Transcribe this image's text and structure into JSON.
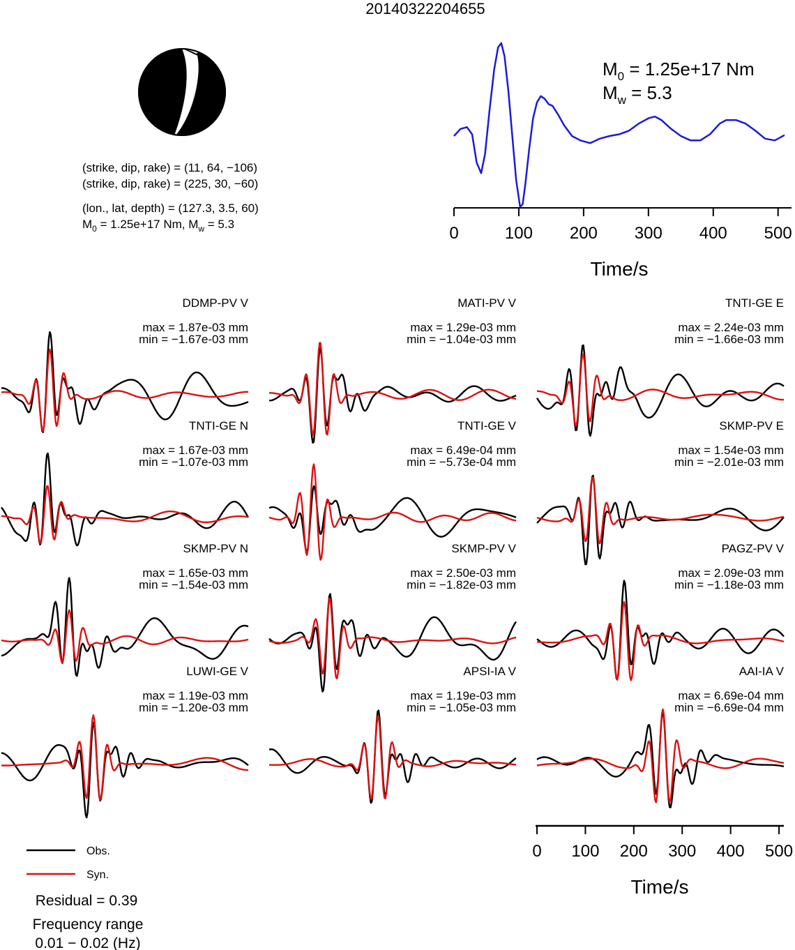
{
  "title": "20140322204655",
  "focal_mechanism": {
    "icon": "beachball-icon",
    "compression_color": "#000000",
    "dilatation_color": "#ffffff",
    "line1": "(strike, dip, rake) = (11, 64, −106)",
    "line2": "(strike, dip, rake) = (225, 30, −60)",
    "line3": "(lon., lat, depth) = (127.3, 3.5, 60)",
    "line4_m0": "M",
    "line4_m0_sub": "0",
    "line4_mid": " = 1.25e+17 Nm, M",
    "line4_mw_sub": "w",
    "line4_end": " = 5.3"
  },
  "stf": {
    "m0_label": "M",
    "m0_sub": "0",
    "m0_value": " = 1.25e+17 Nm",
    "mw_label": "M",
    "mw_sub": "w",
    "mw_value": " = 5.3",
    "color": "#1a1adb",
    "xlabel": "Time/s",
    "ticks": [
      "0",
      "100",
      "200",
      "300",
      "400",
      "500"
    ]
  },
  "chart_data": {
    "type": "line",
    "source_time_function": {
      "x_range": [
        0,
        510
      ],
      "x": [
        0,
        10,
        20,
        28,
        35,
        42,
        48,
        55,
        62,
        68,
        73,
        78,
        84,
        90,
        96,
        102,
        106,
        110,
        116,
        122,
        128,
        134,
        140,
        146,
        152,
        160,
        170,
        182,
        195,
        210,
        225,
        240,
        255,
        270,
        285,
        300,
        310,
        320,
        335,
        350,
        365,
        380,
        395,
        410,
        420,
        435,
        450,
        465,
        480,
        495,
        510
      ],
      "y": [
        0.0,
        0.08,
        0.1,
        0.02,
        -0.3,
        -0.42,
        -0.2,
        0.3,
        0.75,
        1.0,
        1.05,
        0.9,
        0.5,
        0.0,
        -0.5,
        -0.8,
        -0.77,
        -0.55,
        -0.15,
        0.2,
        0.38,
        0.45,
        0.42,
        0.36,
        0.34,
        0.25,
        0.12,
        0.0,
        -0.05,
        -0.08,
        -0.03,
        0.0,
        0.02,
        0.06,
        0.14,
        0.2,
        0.22,
        0.18,
        0.08,
        0.0,
        -0.05,
        -0.05,
        0.02,
        0.14,
        0.18,
        0.18,
        0.14,
        0.06,
        -0.03,
        -0.05,
        0.01
      ]
    },
    "waveforms": [
      {
        "station": "DDMP-PV V",
        "max": "max = 1.87e-03 mm",
        "min": "min = −1.67e-03 mm",
        "arrival": 100,
        "obs_amp": 1.0,
        "syn_amp": 0.85,
        "seed": 1
      },
      {
        "station": "MATI-PV V",
        "max": "max = 1.29e-03 mm",
        "min": "min = −1.04e-03 mm",
        "arrival": 105,
        "obs_amp": 1.0,
        "syn_amp": 1.0,
        "seed": 2
      },
      {
        "station": "TNTI-GE E",
        "max": "max = 2.24e-03 mm",
        "min": "min = −1.66e-03 mm",
        "arrival": 95,
        "obs_amp": 1.0,
        "syn_amp": 0.75,
        "seed": 3
      },
      {
        "station": "TNTI-GE N",
        "max": "max = 1.67e-03 mm",
        "min": "min = −1.07e-03 mm",
        "arrival": 95,
        "obs_amp": 0.9,
        "syn_amp": 0.6,
        "seed": 4
      },
      {
        "station": "TNTI-GE V",
        "max": "max = 6.49e-04 mm",
        "min": "min = −5.73e-04 mm",
        "arrival": 92,
        "obs_amp": 0.65,
        "syn_amp": 1.0,
        "seed": 5
      },
      {
        "station": "SKMP-PV E",
        "max": "max = 1.54e-03 mm",
        "min": "min = −2.01e-03 mm",
        "arrival": 115,
        "obs_amp": 1.0,
        "syn_amp": 0.7,
        "seed": 6
      },
      {
        "station": "SKMP-PV N",
        "max": "max = 1.65e-03 mm",
        "min": "min = −1.54e-03 mm",
        "arrival": 140,
        "obs_amp": 1.0,
        "syn_amp": 0.55,
        "seed": 7
      },
      {
        "station": "SKMP-PV V",
        "max": "max = 2.50e-03 mm",
        "min": "min = −1.82e-03 mm",
        "arrival": 125,
        "obs_amp": 1.0,
        "syn_amp": 0.85,
        "seed": 8
      },
      {
        "station": "PAGZ-PV V",
        "max": "max = 2.09e-03 mm",
        "min": "min = −1.18e-03 mm",
        "arrival": 180,
        "obs_amp": 1.0,
        "syn_amp": 0.85,
        "seed": 9
      },
      {
        "station": "LUWI-GE V",
        "max": "max = 1.19e-03 mm",
        "min": "min = −1.20e-03 mm",
        "arrival": 190,
        "obs_amp": 1.0,
        "syn_amp": 0.9,
        "seed": 10
      },
      {
        "station": "APSI-IA V",
        "max": "max = 1.19e-03 mm",
        "min": "min = −1.05e-03 mm",
        "arrival": 225,
        "obs_amp": 1.0,
        "syn_amp": 0.9,
        "seed": 11
      },
      {
        "station": "AAI-IA V",
        "max": "max = 6.69e-04 mm",
        "min": "min = −6.69e-04 mm",
        "arrival": 260,
        "obs_amp": 1.0,
        "syn_amp": 1.0,
        "seed": 12
      }
    ],
    "waveform_x_range": [
      0,
      510
    ],
    "xlabel": "Time/s",
    "ticks": [
      "0",
      "100",
      "200",
      "300",
      "400",
      "500"
    ],
    "obs_color": "#000000",
    "syn_color": "#dd1111"
  },
  "legend": {
    "obs_label": "Obs.",
    "syn_label": "Syn."
  },
  "stats": {
    "residual": "Residual = 0.39",
    "freq_label": "Frequency range",
    "freq_value": "0.01 − 0.02 (Hz)"
  }
}
